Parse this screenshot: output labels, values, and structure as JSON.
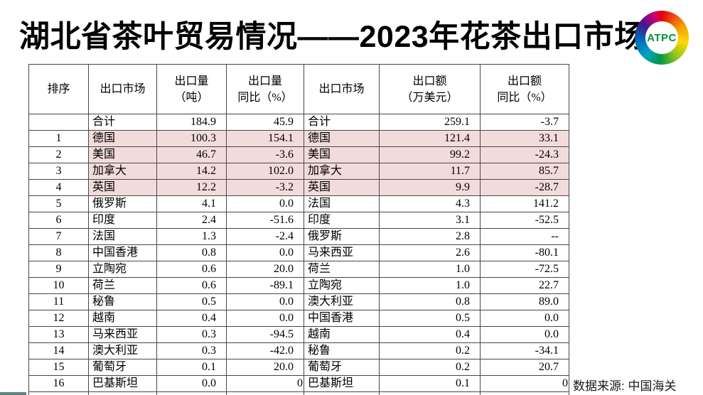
{
  "title": "湖北省茶叶贸易情况——2023年花茶出口市场",
  "logo": {
    "text": "ATPC"
  },
  "source_note": "数据来源: 中国海关",
  "colors": {
    "title_text": "#000000",
    "highlight_row": "#f2dcdb",
    "table_border": "#474747",
    "logo_text_green": "#00913a"
  },
  "table": {
    "headers": [
      [
        "排序"
      ],
      [
        "出口市场"
      ],
      [
        "出口量",
        "（吨）"
      ],
      [
        "出口量",
        "同比（%）"
      ],
      [
        "出口市场"
      ],
      [
        "出口额",
        "（万美元）"
      ],
      [
        "出口额",
        "同比（%）"
      ]
    ],
    "rows": [
      {
        "cells": [
          "",
          "合计",
          "184.9",
          "45.9",
          "合计",
          "259.1",
          "-3.7"
        ],
        "highlight": false
      },
      {
        "cells": [
          "1",
          "德国",
          "100.3",
          "154.1",
          "德国",
          "121.4",
          "33.1"
        ],
        "highlight": true
      },
      {
        "cells": [
          "2",
          "美国",
          "46.7",
          "-3.6",
          "美国",
          "99.2",
          "-24.3"
        ],
        "highlight": true
      },
      {
        "cells": [
          "3",
          "加拿大",
          "14.2",
          "102.0",
          "加拿大",
          "11.7",
          "85.7"
        ],
        "highlight": true
      },
      {
        "cells": [
          "4",
          "英国",
          "12.2",
          "-3.2",
          "英国",
          "9.9",
          "-28.7"
        ],
        "highlight": true
      },
      {
        "cells": [
          "5",
          "俄罗斯",
          "4.1",
          "0.0",
          "法国",
          "4.3",
          "141.2"
        ],
        "highlight": false
      },
      {
        "cells": [
          "6",
          "印度",
          "2.4",
          "-51.6",
          "印度",
          "3.1",
          "-52.5"
        ],
        "highlight": false
      },
      {
        "cells": [
          "7",
          "法国",
          "1.3",
          "-2.4",
          "俄罗斯",
          "2.8",
          "--"
        ],
        "highlight": false
      },
      {
        "cells": [
          "8",
          "中国香港",
          "0.8",
          "0.0",
          "马来西亚",
          "2.6",
          "-80.1"
        ],
        "highlight": false
      },
      {
        "cells": [
          "9",
          "立陶宛",
          "0.6",
          "20.0",
          "荷兰",
          "1.0",
          "-72.5"
        ],
        "highlight": false
      },
      {
        "cells": [
          "10",
          "荷兰",
          "0.6",
          "-89.1",
          "立陶宛",
          "1.0",
          "22.7"
        ],
        "highlight": false
      },
      {
        "cells": [
          "11",
          "秘鲁",
          "0.5",
          "0.0",
          "澳大利亚",
          "0.8",
          "89.0"
        ],
        "highlight": false
      },
      {
        "cells": [
          "12",
          "越南",
          "0.4",
          "0.0",
          "中国香港",
          "0.5",
          "0.0"
        ],
        "highlight": false
      },
      {
        "cells": [
          "13",
          "马来西亚",
          "0.3",
          "-94.5",
          "越南",
          "0.4",
          "0.0"
        ],
        "highlight": false
      },
      {
        "cells": [
          "14",
          "澳大利亚",
          "0.3",
          "-42.0",
          "秘鲁",
          "0.2",
          "-34.1"
        ],
        "highlight": false
      },
      {
        "cells": [
          "15",
          "葡萄牙",
          "0.1",
          "20.0",
          "葡萄牙",
          "0.2",
          "20.7"
        ],
        "highlight": false
      },
      {
        "cells": [
          "16",
          "巴基斯坦",
          "0.0",
          "0",
          "巴基斯坦",
          "0.1",
          "0"
        ],
        "highlight": false
      }
    ]
  }
}
